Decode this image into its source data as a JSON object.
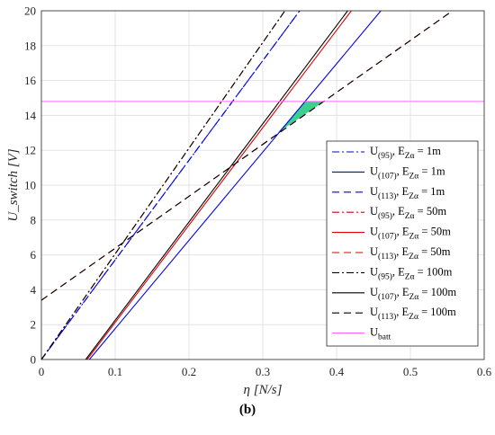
{
  "chart_data": {
    "type": "line",
    "xlabel": "η [N/s]",
    "ylabel": "U_switch [V]",
    "xlim": [
      0,
      0.6
    ],
    "ylim": [
      0,
      20
    ],
    "xticks": [
      "0",
      "0.1",
      "0.2",
      "0.3",
      "0.4",
      "0.5",
      "0.6"
    ],
    "yticks": [
      "0",
      "2",
      "4",
      "6",
      "8",
      "10",
      "12",
      "14",
      "16",
      "18",
      "20"
    ],
    "grid": true,
    "legend_position": "right",
    "series": [
      {
        "name": "U(95), EZα = 1m",
        "label_main": "U",
        "label_sub": "(95)",
        "label_mid": ", E",
        "label_sub2": "Zα",
        "label_end": " = 1m",
        "color": "#0000ee",
        "dash": "dashdot",
        "points": [
          [
            0,
            0
          ],
          [
            0.35,
            20
          ]
        ]
      },
      {
        "name": "U(107), EZα = 1m",
        "label_main": "U",
        "label_sub": "(107)",
        "label_mid": ", E",
        "label_sub2": "Zα",
        "label_end": " = 1m",
        "color": "#0000ee",
        "dash": "solid",
        "points": [
          [
            0.065,
            0
          ],
          [
            0.46,
            20
          ]
        ]
      },
      {
        "name": "U(113), EZα = 1m",
        "label_main": "U",
        "label_sub": "(113)",
        "label_mid": ", E",
        "label_sub2": "Zα",
        "label_end": " = 1m",
        "color": "#0000ee",
        "dash": "dashed",
        "points": [
          [
            0,
            0
          ],
          [
            0.35,
            20
          ]
        ]
      },
      {
        "name": "U(95), EZα = 50m",
        "label_main": "U",
        "label_sub": "(95)",
        "label_mid": ", E",
        "label_sub2": "Zα",
        "label_end": " = 50m",
        "color": "#e00000",
        "dash": "dashdot",
        "points": [
          [
            0,
            0
          ],
          [
            0.33,
            20
          ]
        ]
      },
      {
        "name": "U(107), EZα = 50m",
        "label_main": "U",
        "label_sub": "(107)",
        "label_mid": ", E",
        "label_sub2": "Zα",
        "label_end": " = 50m",
        "color": "#e00000",
        "dash": "solid",
        "points": [
          [
            0.062,
            0
          ],
          [
            0.42,
            20
          ]
        ]
      },
      {
        "name": "U(113), EZα = 50m",
        "label_main": "U",
        "label_sub": "(113)",
        "label_mid": ", E",
        "label_sub2": "Zα",
        "label_end": " = 50m",
        "color": "#e00000",
        "dash": "dashed",
        "points": [
          [
            0,
            3.4
          ],
          [
            0.557,
            20
          ]
        ]
      },
      {
        "name": "U(95), EZα = 100m",
        "label_main": "U",
        "label_sub": "(95)",
        "label_mid": ", E",
        "label_sub2": "Zα",
        "label_end": " = 100m",
        "color": "#000000",
        "dash": "dashdot",
        "points": [
          [
            0,
            0
          ],
          [
            0.33,
            20
          ]
        ]
      },
      {
        "name": "U(107), EZα = 100m",
        "label_main": "U",
        "label_sub": "(107)",
        "label_mid": ", E",
        "label_sub2": "Zα",
        "label_end": " = 100m",
        "color": "#000000",
        "dash": "solid",
        "points": [
          [
            0.06,
            0
          ],
          [
            0.415,
            20
          ]
        ]
      },
      {
        "name": "U(113), EZα = 100m",
        "label_main": "U",
        "label_sub": "(113)",
        "label_mid": ", E",
        "label_sub2": "Zα",
        "label_end": " = 100m",
        "color": "#000000",
        "dash": "dashed",
        "points": [
          [
            0,
            3.4
          ],
          [
            0.557,
            20
          ]
        ]
      },
      {
        "name": "Ubatt",
        "label_main": "U",
        "label_sub": "batt",
        "label_mid": "",
        "label_sub2": "",
        "label_end": "",
        "color": "#ff66ff",
        "dash": "solid",
        "points": [
          [
            0,
            14.8
          ],
          [
            0.6,
            14.8
          ]
        ]
      }
    ],
    "shaded_region": {
      "color": "#3ccf8e",
      "points": [
        [
          0.32,
          13.0
        ],
        [
          0.358,
          14.8
        ],
        [
          0.383,
          14.8
        ]
      ]
    },
    "caption": "(b)"
  }
}
